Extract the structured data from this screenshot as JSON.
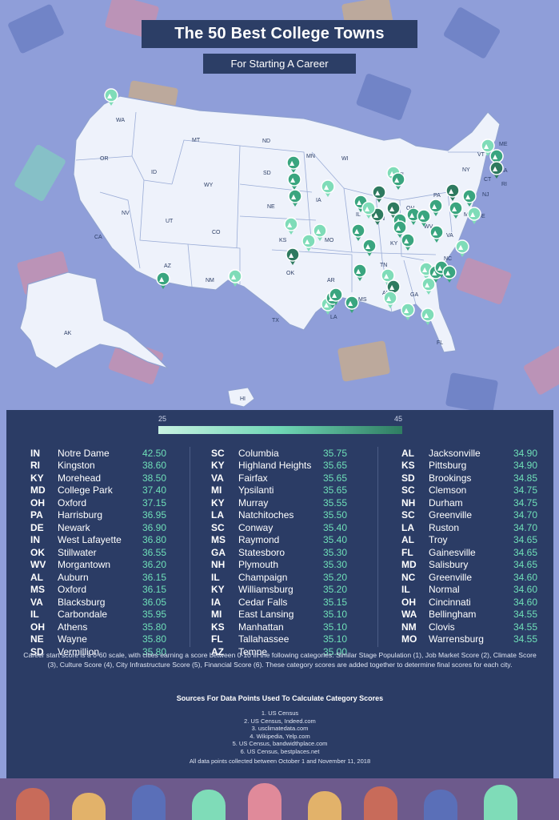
{
  "title": "The 50 Best College Towns",
  "subtitle": "For Starting A Career",
  "map": {
    "state_labels": [
      "WA",
      "OR",
      "CA",
      "NV",
      "ID",
      "MT",
      "WY",
      "UT",
      "AZ",
      "CO",
      "NM",
      "ND",
      "SD",
      "NE",
      "KS",
      "OK",
      "TX",
      "MN",
      "IA",
      "MO",
      "AR",
      "LA",
      "WI",
      "IL",
      "IN",
      "MI",
      "OH",
      "KY",
      "TN",
      "MS",
      "AL",
      "GA",
      "FL",
      "SC",
      "NC",
      "VA",
      "WV",
      "PA",
      "NY",
      "VT",
      "ME",
      "NH",
      "MA",
      "CT",
      "RI",
      "NJ",
      "DE",
      "MD",
      "AK",
      "HI"
    ],
    "pin_icon": "graduation-cap-icon",
    "colors": {
      "map_fill": "#eef2fb",
      "map_stroke": "#8fa1d0",
      "pin_light": "#7fdcb8",
      "pin_mid": "#3aa57f",
      "pin_dark": "#2e7a5f"
    }
  },
  "scale": {
    "min": "25",
    "max": "45"
  },
  "rankings": [
    [
      {
        "state": "IN",
        "city": "Notre Dame",
        "score": "42.50"
      },
      {
        "state": "RI",
        "city": "Kingston",
        "score": "38.60"
      },
      {
        "state": "KY",
        "city": "Morehead",
        "score": "38.50"
      },
      {
        "state": "MD",
        "city": "College Park",
        "score": "37.40"
      },
      {
        "state": "OH",
        "city": "Oxford",
        "score": "37.15"
      },
      {
        "state": "PA",
        "city": "Harrisburg",
        "score": "36.95"
      },
      {
        "state": "DE",
        "city": "Newark",
        "score": "36.90"
      },
      {
        "state": "IN",
        "city": "West Lafayette",
        "score": "36.80"
      },
      {
        "state": "OK",
        "city": "Stillwater",
        "score": "36.55"
      },
      {
        "state": "WV",
        "city": "Morgantown",
        "score": "36.20"
      },
      {
        "state": "AL",
        "city": "Auburn",
        "score": "36.15"
      },
      {
        "state": "MS",
        "city": "Oxford",
        "score": "36.15"
      },
      {
        "state": "VA",
        "city": "Blacksburg",
        "score": "36.05"
      },
      {
        "state": "IL",
        "city": "Carbondale",
        "score": "35.95"
      },
      {
        "state": "OH",
        "city": "Athens",
        "score": "35.80"
      },
      {
        "state": "NE",
        "city": "Wayne",
        "score": "35.80"
      },
      {
        "state": "SD",
        "city": "Vermillion",
        "score": "35.80"
      }
    ],
    [
      {
        "state": "SC",
        "city": "Columbia",
        "score": "35.75"
      },
      {
        "state": "KY",
        "city": "Highland Heights",
        "score": "35.65"
      },
      {
        "state": "VA",
        "city": "Fairfax",
        "score": "35.65"
      },
      {
        "state": "MI",
        "city": "Ypsilanti",
        "score": "35.65"
      },
      {
        "state": "KY",
        "city": "Murray",
        "score": "35.55"
      },
      {
        "state": "LA",
        "city": "Natchitoches",
        "score": "35.50"
      },
      {
        "state": "SC",
        "city": "Conway",
        "score": "35.40"
      },
      {
        "state": "MS",
        "city": "Raymond",
        "score": "35.40"
      },
      {
        "state": "GA",
        "city": "Statesboro",
        "score": "35.30"
      },
      {
        "state": "NH",
        "city": "Plymouth",
        "score": "35.30"
      },
      {
        "state": "IL",
        "city": "Champaign",
        "score": "35.20"
      },
      {
        "state": "KY",
        "city": "Williamsburg",
        "score": "35.20"
      },
      {
        "state": "IA",
        "city": "Cedar Falls",
        "score": "35.15"
      },
      {
        "state": "MI",
        "city": "East Lansing",
        "score": "35.10"
      },
      {
        "state": "KS",
        "city": "Manhattan",
        "score": "35.10"
      },
      {
        "state": "FL",
        "city": "Tallahassee",
        "score": "35.10"
      },
      {
        "state": "AZ",
        "city": "Tempe",
        "score": "35.00"
      }
    ],
    [
      {
        "state": "AL",
        "city": "Jacksonville",
        "score": "34.90"
      },
      {
        "state": "KS",
        "city": "Pittsburg",
        "score": "34.90"
      },
      {
        "state": "SD",
        "city": "Brookings",
        "score": "34.85"
      },
      {
        "state": "SC",
        "city": "Clemson",
        "score": "34.75"
      },
      {
        "state": "NH",
        "city": "Durham",
        "score": "34.75"
      },
      {
        "state": "SC",
        "city": "Greenville",
        "score": "34.70"
      },
      {
        "state": "LA",
        "city": "Ruston",
        "score": "34.70"
      },
      {
        "state": "AL",
        "city": "Troy",
        "score": "34.65"
      },
      {
        "state": "FL",
        "city": "Gainesville",
        "score": "34.65"
      },
      {
        "state": "MD",
        "city": "Salisbury",
        "score": "34.65"
      },
      {
        "state": "NC",
        "city": "Greenville",
        "score": "34.60"
      },
      {
        "state": "IL",
        "city": "Normal",
        "score": "34.60"
      },
      {
        "state": "OH",
        "city": "Cincinnati",
        "score": "34.60"
      },
      {
        "state": "WA",
        "city": "Bellingham",
        "score": "34.55"
      },
      {
        "state": "NM",
        "city": "Clovis",
        "score": "34.55"
      },
      {
        "state": "MO",
        "city": "Warrensburg",
        "score": "34.55"
      }
    ]
  ],
  "note": "Career start score is a 0-60 scale, with cities earning a score between 0-10 in the following categories: Similar Stage Population (1), Job Market Score (2), Climate Score (3), Culture Score (4), City Infrastructure Score (5), Financial Score (6). These category scores are added together to determine final scores for each city.",
  "sources_title": "Sources For Data Points Used To Calculate Category Scores",
  "sources": [
    "1. US Census",
    "2. US Census, Indeed.com",
    "3. usclimatedata.com",
    "4. Wikipedia, Yelp.com",
    "5. US Census, bandwidthplace.com",
    "6. US Census, bestplaces.net"
  ],
  "collected": "All data points collected between October 1 and November 11, 2018"
}
